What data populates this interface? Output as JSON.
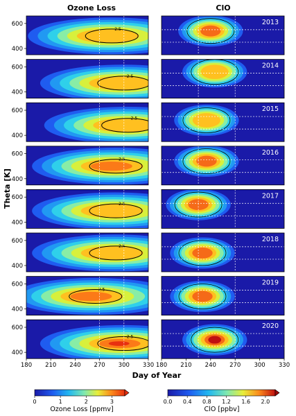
{
  "chart_data": {
    "type": "heatmap",
    "panel_titles": {
      "left": "Ozone Loss",
      "right": "ClO"
    },
    "ylabel": "Theta [K]",
    "xlabel": "Day of Year",
    "xlim": [
      180,
      330
    ],
    "ylim": [
      350,
      660
    ],
    "x_ticks": [
      180,
      210,
      240,
      270,
      300,
      330
    ],
    "y_ticks": [
      400,
      600
    ],
    "years": [
      "2013",
      "2014",
      "2015",
      "2016",
      "2017",
      "2018",
      "2019",
      "2020"
    ],
    "ozone_loss": {
      "contour_label": "2.5",
      "colorbar": {
        "label": "Ozone Loss [ppmv]",
        "ticks": [
          0,
          1,
          2,
          3
        ],
        "range": [
          0,
          3.5
        ]
      },
      "rows": [
        {
          "year": "2013",
          "peak_day": 285,
          "peak_theta": 500,
          "peak_value": 2.9
        },
        {
          "year": "2014",
          "peak_day": 300,
          "peak_theta": 470,
          "peak_value": 2.9
        },
        {
          "year": "2015",
          "peak_day": 305,
          "peak_theta": 480,
          "peak_value": 2.8
        },
        {
          "year": "2016",
          "peak_day": 290,
          "peak_theta": 500,
          "peak_value": 3.2
        },
        {
          "year": "2017",
          "peak_day": 290,
          "peak_theta": 490,
          "peak_value": 2.7
        },
        {
          "year": "2018",
          "peak_day": 290,
          "peak_theta": 500,
          "peak_value": 2.7
        },
        {
          "year": "2019",
          "peak_day": 265,
          "peak_theta": 500,
          "peak_value": 3.3
        },
        {
          "year": "2020",
          "peak_day": 300,
          "peak_theta": 470,
          "peak_value": 3.4
        }
      ]
    },
    "clo": {
      "colorbar": {
        "label": "ClO [ppbv]",
        "ticks": [
          "0.0",
          "0.4",
          "0.8",
          "1.2",
          "1.6",
          "2.0"
        ],
        "range": [
          0,
          2.2
        ]
      },
      "reference_lines": {
        "days": [
          225,
          270
        ],
        "theta": [
          450,
          550
        ]
      },
      "rows": [
        {
          "year": "2013",
          "peak_day": 240,
          "peak_theta": 540,
          "peak_value": 2.0
        },
        {
          "year": "2014",
          "peak_day": 245,
          "peak_theta": 560,
          "peak_value": 1.8
        },
        {
          "year": "2015",
          "peak_day": 235,
          "peak_theta": 520,
          "peak_value": 1.7
        },
        {
          "year": "2016",
          "peak_day": 235,
          "peak_theta": 540,
          "peak_value": 2.0
        },
        {
          "year": "2017",
          "peak_day": 225,
          "peak_theta": 540,
          "peak_value": 1.9
        },
        {
          "year": "2018",
          "peak_day": 230,
          "peak_theta": 500,
          "peak_value": 2.0
        },
        {
          "year": "2019",
          "peak_day": 230,
          "peak_theta": 500,
          "peak_value": 1.9
        },
        {
          "year": "2020",
          "peak_day": 245,
          "peak_theta": 500,
          "peak_value": 2.1
        }
      ]
    }
  }
}
